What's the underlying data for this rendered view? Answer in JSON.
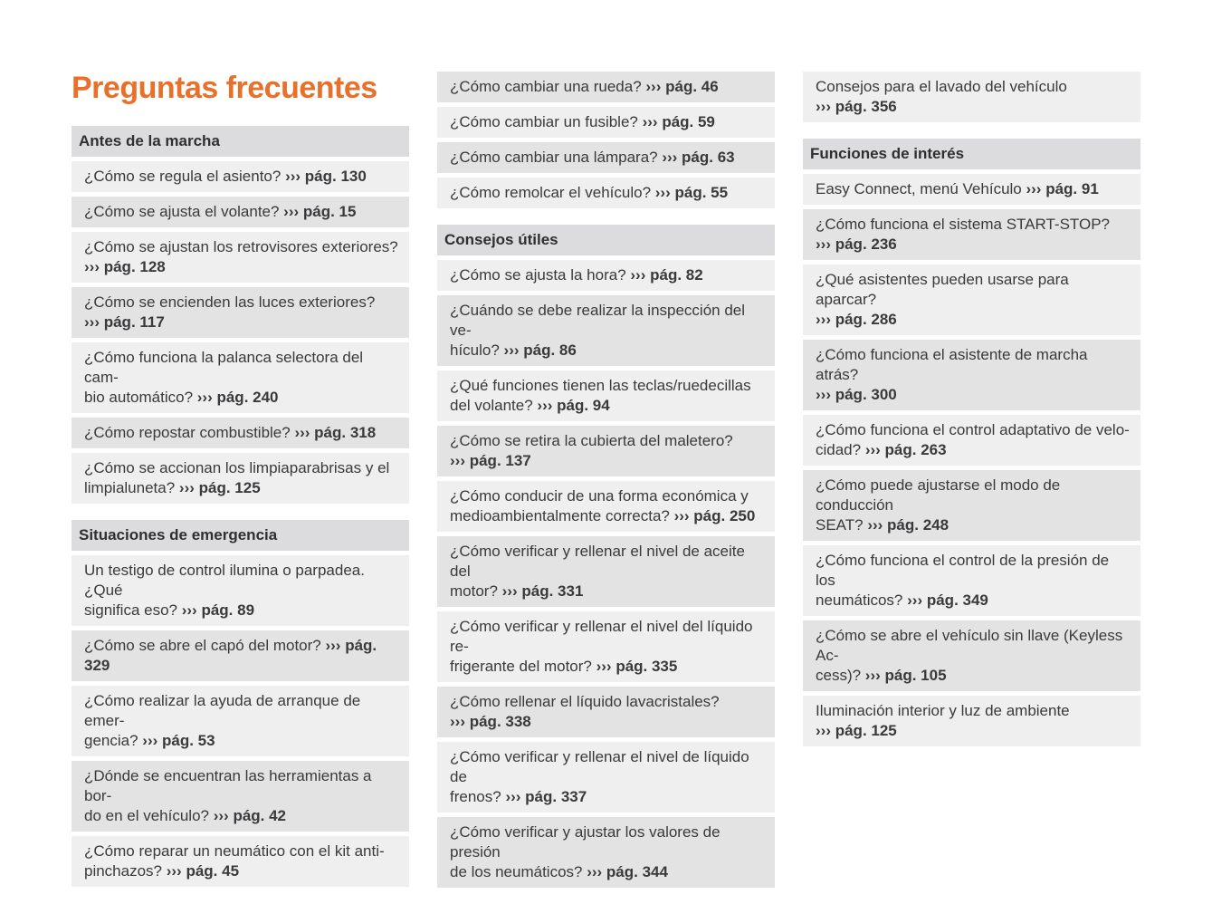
{
  "title": "Preguntas frecuentes",
  "arrow": "›››",
  "columns": [
    {
      "sections": [
        {
          "header": "Antes de la marcha",
          "shift": false,
          "items": [
            {
              "q": "¿Cómo se regula el asiento? ",
              "ref": "pág. 130"
            },
            {
              "q": "¿Cómo se ajusta el volante? ",
              "ref": "pág. 15"
            },
            {
              "q": "¿Cómo se ajustan los retrovisores exteriores?\n",
              "ref": "pág. 128"
            },
            {
              "q": "¿Cómo se encienden las luces exteriores?\n",
              "ref": "pág. 117"
            },
            {
              "q": "¿Cómo funciona la palanca selectora del cam-\nbio automático? ",
              "ref": "pág. 240"
            },
            {
              "q": "¿Cómo repostar combustible? ",
              "ref": "pág. 318"
            },
            {
              "q": "¿Cómo se accionan los limpiaparabrisas y el\nlimpialuneta? ",
              "ref": "pág. 125"
            }
          ]
        },
        {
          "header": "Situaciones de emergencia",
          "shift": false,
          "items": [
            {
              "q": "Un testigo de control ilumina o parpadea. ¿Qué\nsignifica eso? ",
              "ref": "pág. 89"
            },
            {
              "q": "¿Cómo se abre el capó del motor? ",
              "ref": "pág. 329"
            },
            {
              "q": "¿Cómo realizar la ayuda de arranque de emer-\ngencia? ",
              "ref": "pág. 53"
            },
            {
              "q": "¿Dónde se encuentran las herramientas a bor-\ndo en el vehículo? ",
              "ref": "pág. 42"
            },
            {
              "q": "¿Cómo reparar un neumático con el kit anti-\npinchazos? ",
              "ref": "pág. 45"
            }
          ]
        }
      ]
    },
    {
      "sections": [
        {
          "header": "",
          "shift": true,
          "items": [
            {
              "q": "¿Cómo cambiar una rueda? ",
              "ref": "pág. 46"
            },
            {
              "q": "¿Cómo cambiar un fusible? ",
              "ref": "pág. 59"
            },
            {
              "q": "¿Cómo cambiar una lámpara? ",
              "ref": "pág. 63"
            },
            {
              "q": "¿Cómo remolcar el vehículo? ",
              "ref": "pág. 55"
            }
          ]
        },
        {
          "header": "Consejos útiles",
          "shift": false,
          "items": [
            {
              "q": "¿Cómo se ajusta la hora? ",
              "ref": "pág. 82"
            },
            {
              "q": "¿Cuándo se debe realizar la inspección del ve-\nhículo? ",
              "ref": "pág. 86"
            },
            {
              "q": "¿Qué funciones tienen las teclas/ruedecillas\ndel volante? ",
              "ref": "pág. 94"
            },
            {
              "q": "¿Cómo se retira la cubierta del maletero?\n",
              "ref": "pág. 137"
            },
            {
              "q": "¿Cómo conducir de una forma económica y\nmedioambientalmente correcta? ",
              "ref": "pág. 250"
            },
            {
              "q": "¿Cómo verificar y rellenar el nivel de aceite del\nmotor? ",
              "ref": "pág. 331"
            },
            {
              "q": "¿Cómo verificar y rellenar el nivel del líquido re-\nfrigerante del motor? ",
              "ref": "pág. 335"
            },
            {
              "q": "¿Cómo rellenar el líquido lavacristales?\n",
              "ref": "pág. 338"
            },
            {
              "q": "¿Cómo verificar y rellenar el nivel de líquido de\nfrenos? ",
              "ref": "pág. 337"
            },
            {
              "q": "¿Cómo verificar y ajustar los valores de presión\nde los neumáticos? ",
              "ref": "pág. 344"
            }
          ]
        }
      ]
    },
    {
      "sections": [
        {
          "header": "",
          "shift": false,
          "items": [
            {
              "q": "Consejos para el lavado del vehículo\n",
              "ref": "pág. 356"
            }
          ]
        },
        {
          "header": "Funciones de interés",
          "shift": false,
          "items": [
            {
              "q": "Easy Connect, menú Vehículo ",
              "ref": "pág. 91"
            },
            {
              "q": "¿Cómo funciona el sistema START-STOP?\n",
              "ref": "pág. 236"
            },
            {
              "q": "¿Qué asistentes pueden usarse para aparcar?\n",
              "ref": "pág. 286"
            },
            {
              "q": "¿Cómo funciona el asistente de marcha atrás?\n",
              "ref": "pág. 300"
            },
            {
              "q": "¿Cómo funciona el control adaptativo de velo-\ncidad? ",
              "ref": "pág. 263"
            },
            {
              "q": "¿Cómo puede ajustarse el modo de conducción\nSEAT? ",
              "ref": "pág. 248"
            },
            {
              "q": "¿Cómo funciona el control de la presión de los\nneumáticos? ",
              "ref": "pág. 349"
            },
            {
              "q": "¿Cómo se abre el vehículo sin llave (Keyless Ac-\ncess)? ",
              "ref": "pág. 105"
            },
            {
              "q": "Iluminación interior y luz de ambiente\n",
              "ref": "pág. 125"
            }
          ]
        }
      ]
    }
  ]
}
